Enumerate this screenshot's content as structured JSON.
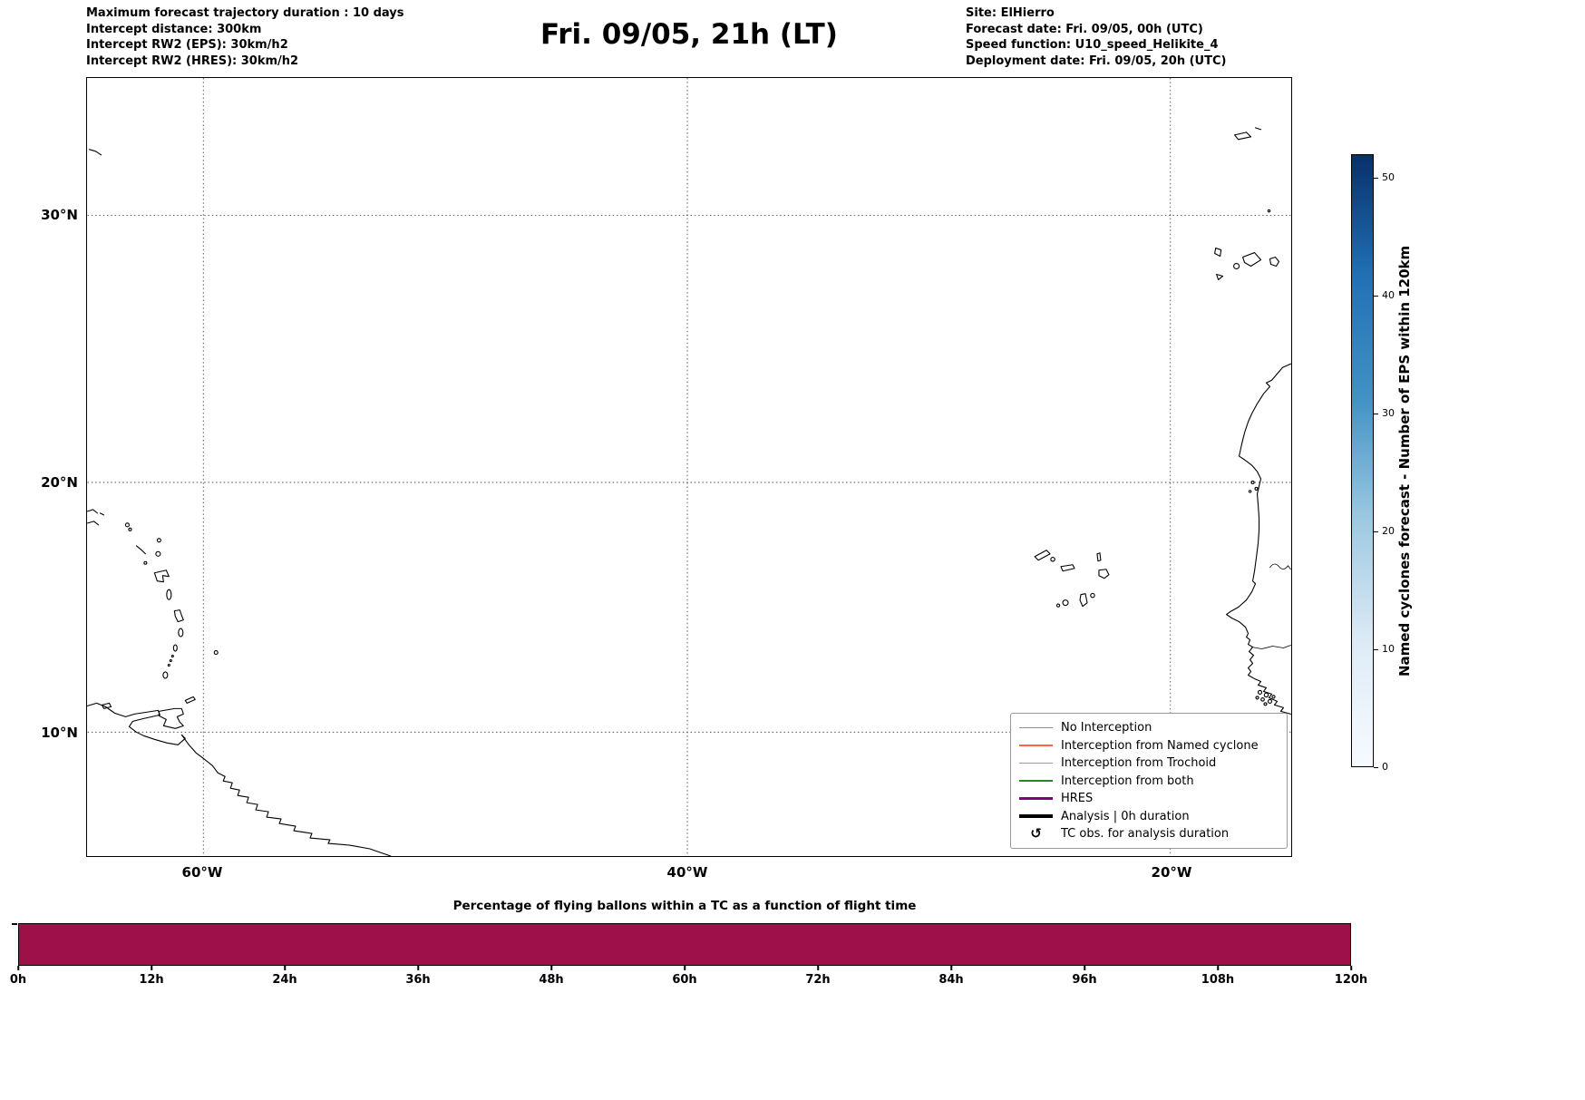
{
  "header": {
    "left_lines": [
      "Maximum forecast trajectory duration : 10 days",
      "Intercept distance: 300km",
      "Intercept RW2 (EPS):  30km/h2",
      "Intercept RW2 (HRES): 30km/h2"
    ],
    "title": "Fri. 09/05, 21h (LT)",
    "right_lines": [
      "Site: ElHierro",
      "Forecast date: Fri. 09/05, 00h (UTC)",
      "Speed function: U10_speed_Helikite_4",
      "Deployment date: Fri. 09/05, 20h (UTC)"
    ]
  },
  "map": {
    "lat_labels": [
      "30°N",
      "20°N",
      "10°N"
    ],
    "lon_labels": [
      "60°W",
      "40°W",
      "20°W"
    ]
  },
  "legend": {
    "items": [
      {
        "label": "No Interception",
        "color": "#8c8c8c",
        "weight": "thin"
      },
      {
        "label": "Interception from Named cyclone",
        "color": "#ff6347",
        "weight": "thin"
      },
      {
        "label": "Interception from Trochoid",
        "color": "#b5a03a",
        "weight": "thin"
      },
      {
        "label": "Interception from both",
        "color": "#228b22",
        "weight": "thin"
      },
      {
        "label": "HRES",
        "color": "#800080",
        "weight": "thick"
      },
      {
        "label": "Analysis | 0h duration",
        "color": "#000000",
        "weight": "thick"
      },
      {
        "label": "TC obs. for analysis duration",
        "color": "#000000",
        "symbol": "↺"
      }
    ]
  },
  "colorbar": {
    "label": "Named cyclones forecast - Number of EPS within 120km",
    "ticks": [
      0,
      10,
      20,
      30,
      40,
      50
    ],
    "vmax": 52,
    "gradient_stops": [
      "#f7fbff",
      "#deebf7",
      "#9ecae1",
      "#4292c6",
      "#2171b5",
      "#08306b"
    ]
  },
  "chart_data": {
    "type": "bar",
    "title": "Percentage of flying ballons within a TC as a function of flight time",
    "xlabel": "",
    "ylabel": "",
    "x_tick_labels": [
      "0h",
      "12h",
      "24h",
      "36h",
      "48h",
      "60h",
      "72h",
      "84h",
      "96h",
      "108h",
      "120h"
    ],
    "x_range_hours": [
      0,
      120
    ],
    "ylim": [
      0,
      100
    ],
    "series": [
      {
        "name": "percentage of flying balloons within a TC",
        "x_hours": [
          0,
          12,
          24,
          36,
          48,
          60,
          72,
          84,
          96,
          108,
          120
        ],
        "values": [
          100,
          100,
          100,
          100,
          100,
          100,
          100,
          100,
          100,
          100,
          100
        ]
      }
    ],
    "bar_color": "#9e1148",
    "grid": false,
    "legend_position": "none"
  }
}
